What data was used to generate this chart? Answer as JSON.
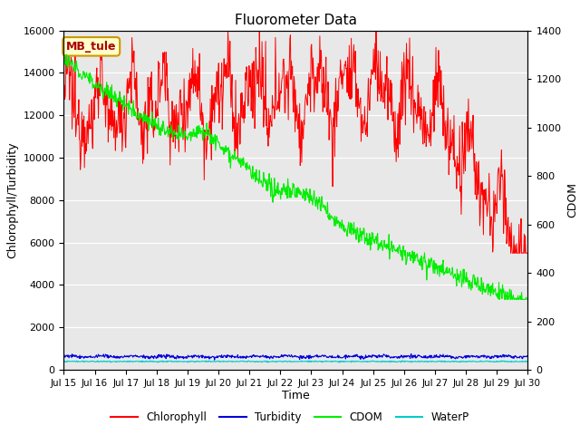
{
  "title": "Fluorometer Data",
  "xlabel": "Time",
  "ylabel_left": "Chlorophyll/Turbidity",
  "ylabel_right": "CDOM",
  "station_label": "MB_tule",
  "xlim_days": [
    0,
    15
  ],
  "ylim_left": [
    0,
    16000
  ],
  "ylim_right": [
    0,
    1400
  ],
  "xtick_labels": [
    "Jul 15",
    "Jul 16",
    "Jul 17",
    "Jul 18",
    "Jul 19",
    "Jul 20",
    "Jul 21",
    "Jul 22",
    "Jul 23",
    "Jul 24",
    "Jul 25",
    "Jul 26",
    "Jul 27",
    "Jul 28",
    "Jul 29",
    "Jul 30"
  ],
  "colors": {
    "chlorophyll": "#ff0000",
    "turbidity": "#0000dd",
    "cdom": "#00ee00",
    "waterp": "#00cccc",
    "background": "#e8e8e8",
    "station_box_bg": "#ffffcc",
    "station_box_edge": "#cc9900"
  },
  "legend_labels": [
    "Chlorophyll",
    "Turbidity",
    "CDOM",
    "WaterP"
  ]
}
